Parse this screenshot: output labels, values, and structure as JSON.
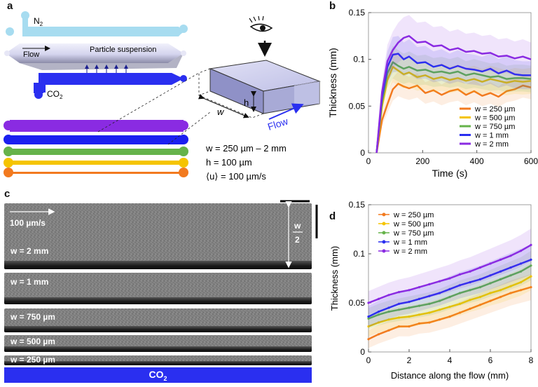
{
  "panels": {
    "a": "a",
    "b": "b",
    "c": "c",
    "d": "d"
  },
  "schematic": {
    "n2_label": "N",
    "n2_sub": "2",
    "flow_label": "Flow",
    "suspension_label": "Particle suspension",
    "co2_label": "CO",
    "co2_sub": "2",
    "h_label": "h",
    "w_label": "w",
    "box_flow_label": "Flow",
    "param_w": "w = 250 µm – 2 mm",
    "param_h": "h = 100 µm",
    "param_u": "⟨u⟩ = 100 µm/s"
  },
  "colors": {
    "w250": "#f27a1f",
    "w500": "#f5c400",
    "w750": "#66b34a",
    "w1": "#2a2ff0",
    "w2": "#8a2be2"
  },
  "micrograph": {
    "speed_label": "100 µm/s",
    "half_width_num": "w",
    "half_width_den": "2",
    "strips": [
      "w = 2 mm",
      "w = 1 mm",
      "w = 750 µm",
      "w = 500 µm",
      "w = 250 µm"
    ],
    "co2_bar_label": "CO",
    "co2_bar_sub": "2"
  },
  "chart_data": [
    {
      "id": "b",
      "type": "line",
      "xlabel": "Time (s)",
      "ylabel": "Thickness (mm)",
      "xlim": [
        0,
        600
      ],
      "ylim": [
        0,
        0.15
      ],
      "xticks": [
        0,
        200,
        400,
        600
      ],
      "yticks": [
        0,
        0.05,
        0.1,
        0.15
      ],
      "ytick_labels": [
        "0",
        "0.05",
        "0.1",
        "0.15"
      ],
      "legend_position": "bottom-right",
      "series": [
        {
          "name": "w = 250 µm",
          "x": [
            30,
            50,
            70,
            90,
            110,
            130,
            150,
            180,
            210,
            240,
            270,
            300,
            330,
            360,
            390,
            420,
            450,
            480,
            510,
            540,
            570,
            600
          ],
          "y": [
            0,
            0.035,
            0.052,
            0.068,
            0.074,
            0.071,
            0.069,
            0.072,
            0.064,
            0.067,
            0.062,
            0.066,
            0.068,
            0.062,
            0.066,
            0.061,
            0.064,
            0.06,
            0.066,
            0.068,
            0.072,
            0.07
          ]
        },
        {
          "name": "w = 500 µm",
          "x": [
            30,
            50,
            70,
            90,
            110,
            130,
            150,
            180,
            210,
            240,
            270,
            300,
            330,
            360,
            390,
            420,
            450,
            480,
            510,
            540,
            570,
            600
          ],
          "y": [
            0,
            0.05,
            0.078,
            0.092,
            0.088,
            0.084,
            0.086,
            0.081,
            0.083,
            0.079,
            0.081,
            0.078,
            0.08,
            0.077,
            0.079,
            0.076,
            0.079,
            0.077,
            0.075,
            0.077,
            0.076,
            0.077
          ]
        },
        {
          "name": "w = 750 µm",
          "x": [
            30,
            50,
            70,
            90,
            110,
            130,
            150,
            180,
            210,
            240,
            270,
            300,
            330,
            360,
            390,
            420,
            450,
            480,
            510,
            540,
            570,
            600
          ],
          "y": [
            0,
            0.055,
            0.085,
            0.097,
            0.093,
            0.09,
            0.092,
            0.088,
            0.089,
            0.086,
            0.087,
            0.085,
            0.087,
            0.083,
            0.085,
            0.083,
            0.081,
            0.082,
            0.079,
            0.08,
            0.08,
            0.079
          ]
        },
        {
          "name": "w = 1 mm",
          "x": [
            30,
            50,
            70,
            90,
            110,
            130,
            150,
            180,
            210,
            240,
            270,
            300,
            330,
            360,
            390,
            420,
            450,
            480,
            510,
            540,
            570,
            600
          ],
          "y": [
            0,
            0.06,
            0.092,
            0.105,
            0.106,
            0.1,
            0.103,
            0.096,
            0.097,
            0.092,
            0.094,
            0.09,
            0.093,
            0.09,
            0.089,
            0.087,
            0.09,
            0.085,
            0.088,
            0.084,
            0.083,
            0.083
          ]
        },
        {
          "name": "w = 2 mm",
          "x": [
            30,
            50,
            70,
            90,
            110,
            130,
            150,
            180,
            210,
            240,
            270,
            300,
            330,
            360,
            390,
            420,
            450,
            480,
            510,
            540,
            570,
            600
          ],
          "y": [
            0,
            0.065,
            0.098,
            0.11,
            0.118,
            0.123,
            0.125,
            0.118,
            0.119,
            0.114,
            0.115,
            0.11,
            0.112,
            0.108,
            0.109,
            0.106,
            0.107,
            0.103,
            0.104,
            0.101,
            0.103,
            0.1
          ]
        }
      ]
    },
    {
      "id": "d",
      "type": "line",
      "xlabel": "Distance along the flow (mm)",
      "ylabel": "Thickness (mm)",
      "xlim": [
        0,
        8
      ],
      "ylim": [
        0,
        0.15
      ],
      "xticks": [
        0,
        2,
        4,
        6,
        8
      ],
      "yticks": [
        0,
        0.05,
        0.1,
        0.15
      ],
      "ytick_labels": [
        "0",
        "0.05",
        "0.1",
        "0.15"
      ],
      "legend_position": "top-left",
      "series": [
        {
          "name": "w = 250 µm",
          "x": [
            0,
            0.5,
            1,
            1.5,
            2,
            2.5,
            3,
            3.5,
            4,
            4.5,
            5,
            5.5,
            6,
            6.5,
            7,
            7.5,
            8
          ],
          "y": [
            0.013,
            0.018,
            0.022,
            0.026,
            0.026,
            0.029,
            0.03,
            0.033,
            0.036,
            0.04,
            0.044,
            0.048,
            0.052,
            0.056,
            0.06,
            0.063,
            0.066
          ]
        },
        {
          "name": "w = 500 µm",
          "x": [
            0,
            0.5,
            1,
            1.5,
            2,
            2.5,
            3,
            3.5,
            4,
            4.5,
            5,
            5.5,
            6,
            6.5,
            7,
            7.5,
            8
          ],
          "y": [
            0.026,
            0.03,
            0.033,
            0.035,
            0.036,
            0.038,
            0.04,
            0.043,
            0.046,
            0.049,
            0.053,
            0.056,
            0.06,
            0.063,
            0.067,
            0.071,
            0.077
          ]
        },
        {
          "name": "w = 750 µm",
          "x": [
            0,
            0.5,
            1,
            1.5,
            2,
            2.5,
            3,
            3.5,
            4,
            4.5,
            5,
            5.5,
            6,
            6.5,
            7,
            7.5,
            8
          ],
          "y": [
            0.034,
            0.038,
            0.041,
            0.043,
            0.045,
            0.047,
            0.049,
            0.052,
            0.056,
            0.06,
            0.063,
            0.066,
            0.07,
            0.074,
            0.078,
            0.082,
            0.088
          ]
        },
        {
          "name": "w = 1 mm",
          "x": [
            0,
            0.5,
            1,
            1.5,
            2,
            2.5,
            3,
            3.5,
            4,
            4.5,
            5,
            5.5,
            6,
            6.5,
            7,
            7.5,
            8
          ],
          "y": [
            0.036,
            0.041,
            0.045,
            0.049,
            0.051,
            0.054,
            0.057,
            0.06,
            0.064,
            0.068,
            0.071,
            0.074,
            0.078,
            0.082,
            0.086,
            0.09,
            0.094
          ]
        },
        {
          "name": "w = 2 mm",
          "x": [
            0,
            0.5,
            1,
            1.5,
            2,
            2.5,
            3,
            3.5,
            4,
            4.5,
            5,
            5.5,
            6,
            6.5,
            7,
            7.5,
            8
          ],
          "y": [
            0.05,
            0.054,
            0.058,
            0.061,
            0.063,
            0.066,
            0.069,
            0.072,
            0.075,
            0.079,
            0.082,
            0.086,
            0.09,
            0.094,
            0.098,
            0.103,
            0.109
          ]
        }
      ]
    }
  ]
}
